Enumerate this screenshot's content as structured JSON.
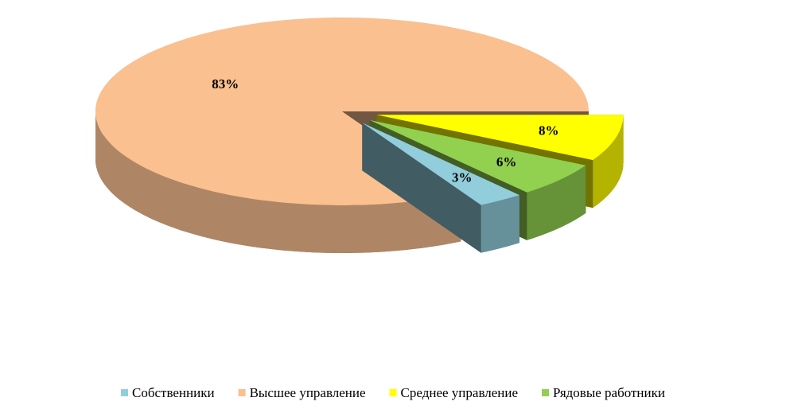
{
  "chart_data": {
    "type": "pie",
    "categories": [
      "Собственники",
      "Высшее управление",
      "Среднее управление",
      "Рядовые работники"
    ],
    "values": [
      3,
      83,
      8,
      6
    ],
    "value_labels": [
      "3%",
      "83%",
      "8%",
      "6%"
    ],
    "colors": [
      "#92cddc",
      "#fac090",
      "#ffff00",
      "#92d050"
    ],
    "legend": "bottom"
  }
}
